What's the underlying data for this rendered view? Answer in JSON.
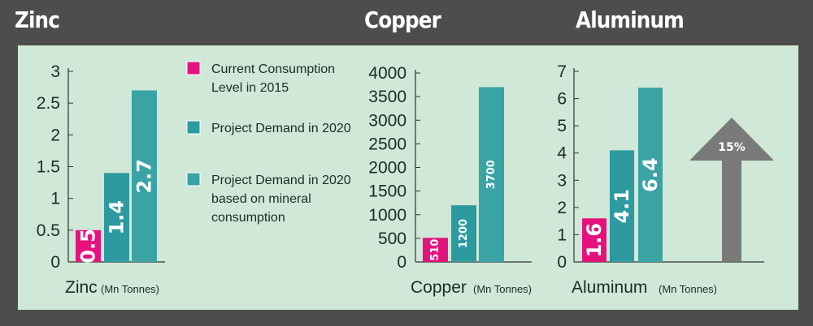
{
  "colors": {
    "current": "#e5127d",
    "projected": "#2d9aa0",
    "projected_alt": "#3aa3a4",
    "background": "#4d4d4d",
    "panel": "#cfe8d7",
    "arrow": "#7a7a7a"
  },
  "headings": {
    "zinc": "Zinc",
    "copper": "Copper",
    "aluminum": "Aluminum"
  },
  "legend": [
    {
      "lines": [
        "Current Consumption",
        "Level in 2015"
      ],
      "color": "#e5127d"
    },
    {
      "lines": [
        "Project Demand in 2020"
      ],
      "color": "#2d9aa0"
    },
    {
      "lines": [
        "Project Demand in 2020",
        "based on mineral",
        "consumption"
      ],
      "color": "#3aa3a4"
    }
  ],
  "arrow_label": "15%",
  "chart_data": [
    {
      "id": "zinc",
      "type": "bar",
      "title": "Zinc",
      "xlabel": "Zinc",
      "xlabel_unit": "(Mn Tonnes)",
      "ylim": [
        0,
        3
      ],
      "yticks": [
        "0",
        "0.5",
        "1",
        "1.5",
        "2",
        "2.5",
        "3"
      ],
      "tick_values": [
        0,
        0.5,
        1,
        1.5,
        2,
        2.5,
        3
      ],
      "values": [
        0.5,
        1.4,
        2.7
      ],
      "labels": [
        "0.5",
        "1.4",
        "2.7"
      ]
    },
    {
      "id": "copper",
      "type": "bar",
      "title": "Copper",
      "xlabel": "Copper",
      "xlabel_unit": "(Mn Tonnes)",
      "ylim": [
        0,
        4000
      ],
      "yticks": [
        "0",
        "500",
        "1000",
        "1500",
        "2000",
        "2500",
        "3000",
        "3500",
        "4000"
      ],
      "tick_values": [
        0,
        500,
        1000,
        1500,
        2000,
        2500,
        3000,
        3500,
        4000
      ],
      "values": [
        510,
        1200,
        3700
      ],
      "labels": [
        "510",
        "1200",
        "3700"
      ]
    },
    {
      "id": "aluminum",
      "type": "bar",
      "title": "Aluminum",
      "xlabel": "Aluminum",
      "xlabel_unit": "(Mn Tonnes)",
      "ylim": [
        0,
        7
      ],
      "yticks": [
        "0",
        "1",
        "2",
        "3",
        "4",
        "5",
        "6",
        "7"
      ],
      "tick_values": [
        0,
        1,
        2,
        3,
        4,
        5,
        6,
        7
      ],
      "values": [
        1.6,
        4.1,
        6.4
      ],
      "labels": [
        "1.6",
        "4.1",
        "6.4"
      ]
    }
  ]
}
